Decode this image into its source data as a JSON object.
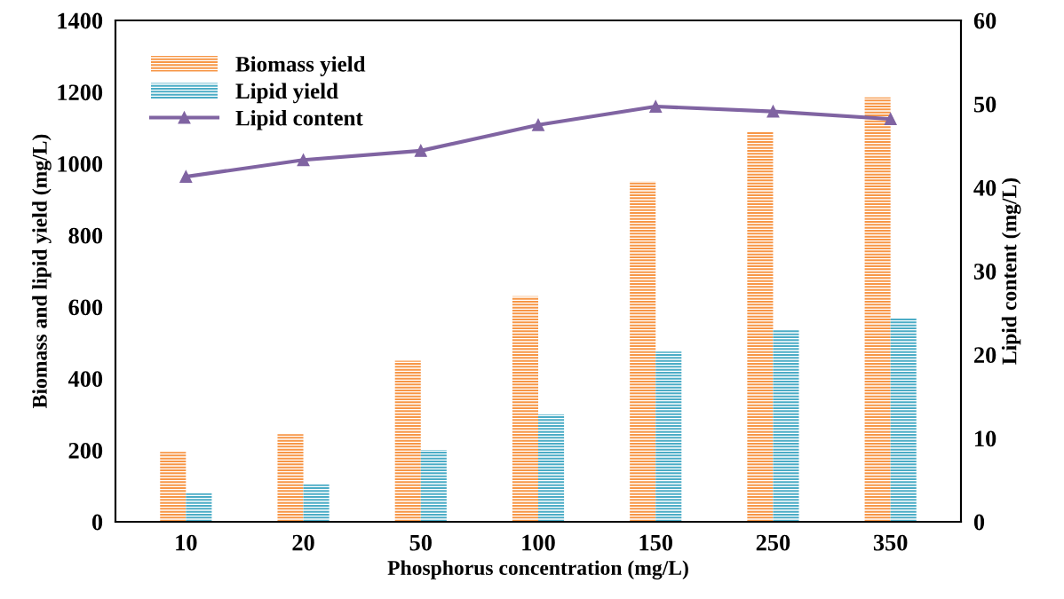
{
  "chart_data": {
    "type": "bar",
    "xlabel": "Phosphorus concentration (mg/L)",
    "ylabel": "Biomass and lipid yield (mg/L)",
    "y2label": "Lipid content (mg/L)",
    "categories": [
      "10",
      "20",
      "50",
      "100",
      "150",
      "250",
      "350"
    ],
    "series": [
      {
        "name": "Biomass yield",
        "color": "#f79646",
        "values": [
          195,
          245,
          450,
          630,
          950,
          1090,
          1185
        ]
      },
      {
        "name": "Lipid yield",
        "color": "#4bacc6",
        "values": [
          80,
          105,
          200,
          300,
          475,
          535,
          570
        ]
      },
      {
        "name": "Lipid content",
        "type": "line",
        "axis": "y2",
        "color": "#8064a2",
        "marker": "triangle",
        "values": [
          41.3,
          43.3,
          44.4,
          47.5,
          49.7,
          49.1,
          48.2
        ]
      }
    ],
    "ylim": [
      0,
      1400
    ],
    "yticks": [
      0,
      200,
      400,
      600,
      800,
      1000,
      1200,
      1400
    ],
    "y2lim": [
      0,
      60
    ],
    "y2ticks": [
      0,
      10,
      20,
      30,
      40,
      50,
      60
    ],
    "grid": false,
    "legend": "top left"
  }
}
